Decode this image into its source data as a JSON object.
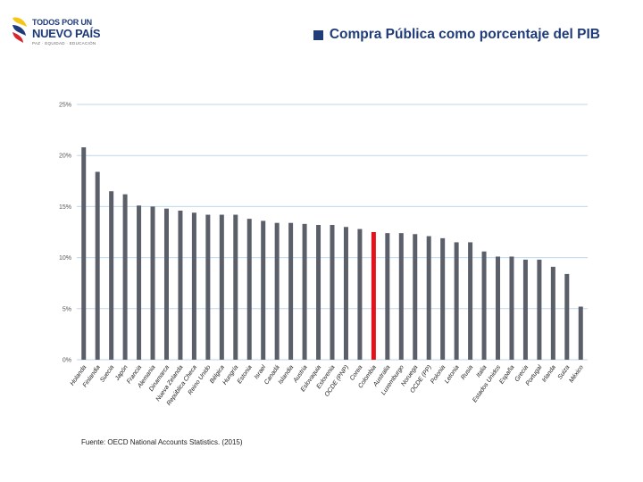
{
  "logo": {
    "line1": "TODOS POR UN",
    "line2": "NUEVO PAÍS",
    "line3": "PAZ · EQUIDAD · EDUCACIÓN",
    "colors": [
      "#f5c518",
      "#1f3b7a",
      "#d7262c"
    ]
  },
  "title": "Compra Pública como porcentaje del PIB",
  "source": "Fuente: OECD National Accounts Statistics. (2015)",
  "colors": {
    "bar": "#5b5f69",
    "highlight": "#e3111b",
    "grid": "#bfd7ea",
    "title": "#1f3b7a"
  },
  "chart_data": {
    "type": "bar",
    "categories": [
      "Holanda",
      "Finlandia",
      "Suecia",
      "Japón",
      "Francia",
      "Alemania",
      "Dinamarca",
      "Nueva Zelanda",
      "República Checa",
      "Reino Unido",
      "Bélgica",
      "Hungría",
      "Estonia",
      "Israel",
      "Canadá",
      "Islandia",
      "Austria",
      "Eslovaquia",
      "Eslovenia",
      "OCDE (PNP)",
      "Corea",
      "Colombia",
      "Australia",
      "Luxemburgo",
      "Noruega",
      "OCDE (PP)",
      "Polonia",
      "Letonia",
      "Rusia",
      "Italia",
      "Estados Unidos",
      "España",
      "Grecia",
      "Portugal",
      "Irlanda",
      "Suiza",
      "México"
    ],
    "values": [
      20.8,
      18.4,
      16.5,
      16.2,
      15.1,
      15.0,
      14.8,
      14.6,
      14.4,
      14.2,
      14.2,
      14.2,
      13.8,
      13.6,
      13.4,
      13.4,
      13.3,
      13.2,
      13.2,
      13.0,
      12.8,
      12.5,
      12.4,
      12.4,
      12.3,
      12.1,
      11.9,
      11.5,
      11.5,
      10.6,
      10.1,
      10.1,
      9.8,
      9.8,
      9.1,
      8.4,
      5.2
    ],
    "highlight": "Colombia",
    "ylim": [
      0,
      25
    ],
    "yticks": [
      "0%",
      "5%",
      "10%",
      "15%",
      "20%",
      "25%"
    ],
    "ytick_values": [
      0,
      5,
      10,
      15,
      20,
      25
    ],
    "grid": true,
    "xlabel": "",
    "ylabel": ""
  }
}
